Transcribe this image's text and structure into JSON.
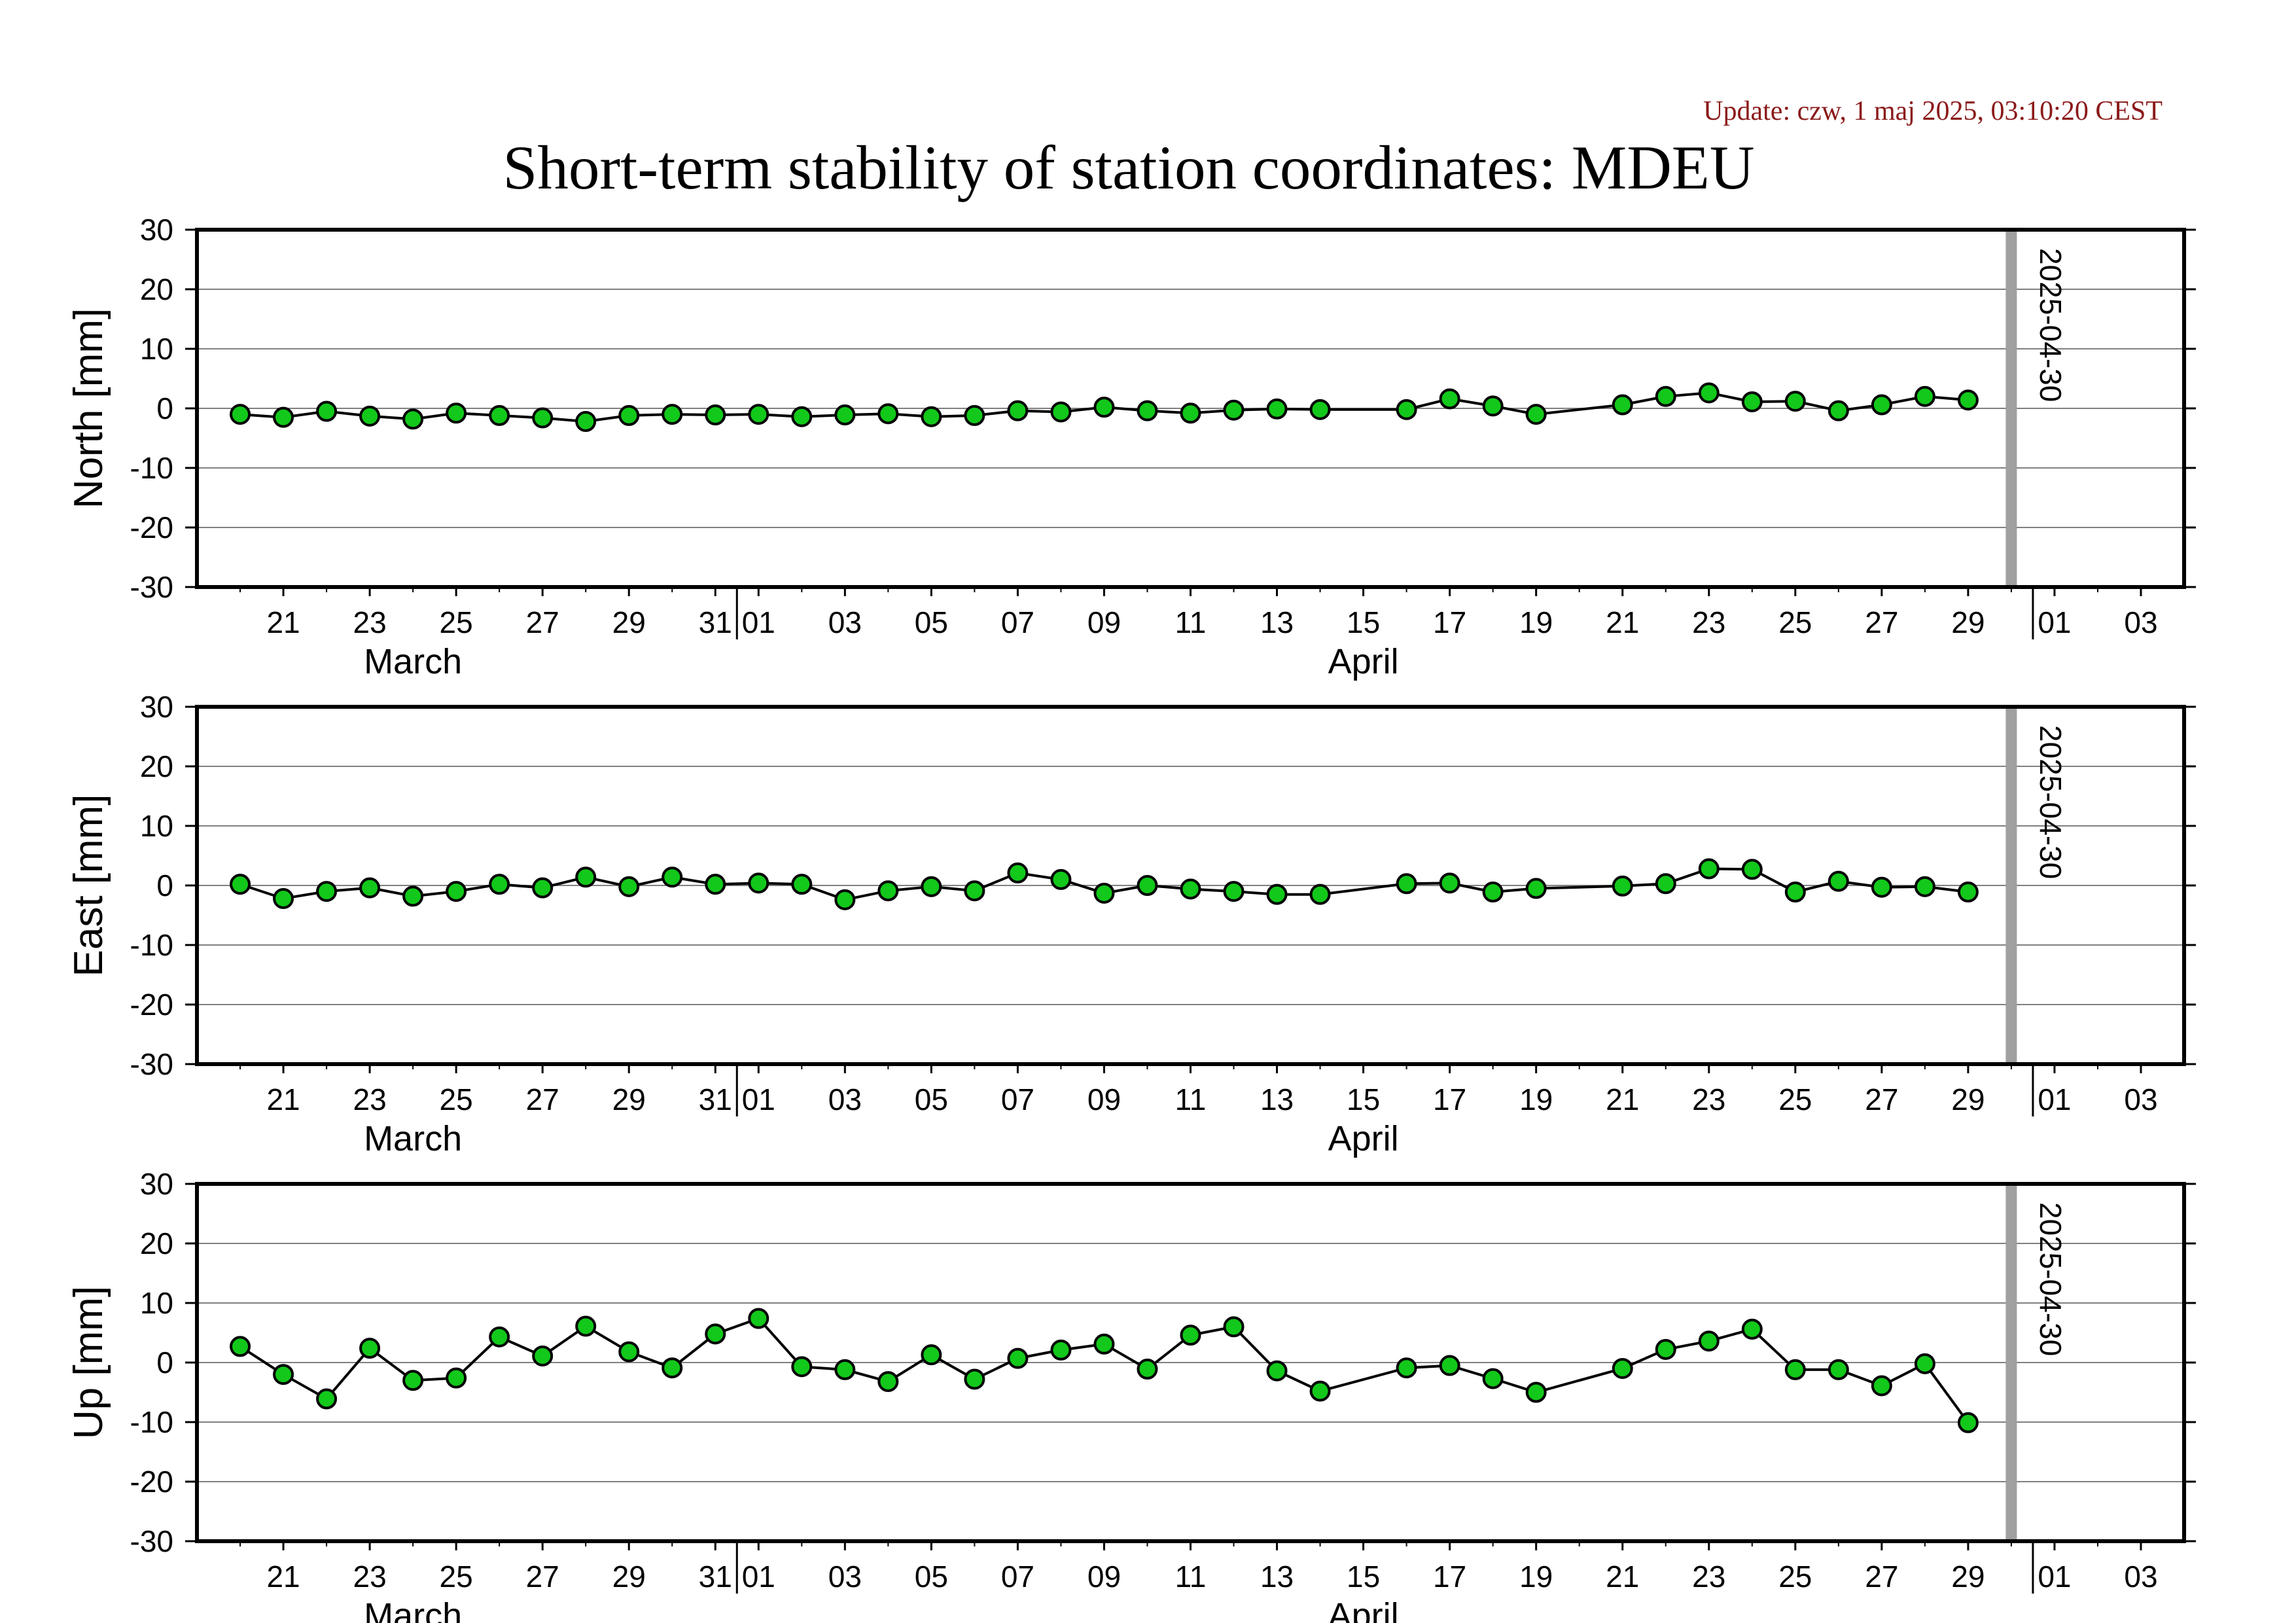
{
  "update_text": "Update: czw, 1 maj 2025, 03:10:20 CEST",
  "colors": {
    "update_text": "#8b1a1a",
    "point_fill": "#12c81a",
    "marker_line": "#a0a0a0",
    "grid": "#808080",
    "frame": "#000000"
  },
  "chart_data": [
    {
      "type": "line",
      "title": "Short-term stability of station coordinates: MDEU",
      "ylabel": "North [mm]",
      "ylim": [
        -30,
        30
      ],
      "yticks": [
        -30,
        -20,
        -10,
        0,
        10,
        20,
        30
      ],
      "xlim": [
        "2025-03-19",
        "2025-05-04"
      ],
      "grid": "horizontal",
      "x": [
        "2025-03-20",
        "2025-03-21",
        "2025-03-22",
        "2025-03-23",
        "2025-03-24",
        "2025-03-25",
        "2025-03-26",
        "2025-03-27",
        "2025-03-28",
        "2025-03-29",
        "2025-03-30",
        "2025-03-31",
        "2025-04-01",
        "2025-04-02",
        "2025-04-03",
        "2025-04-04",
        "2025-04-05",
        "2025-04-06",
        "2025-04-07",
        "2025-04-08",
        "2025-04-09",
        "2025-04-10",
        "2025-04-11",
        "2025-04-12",
        "2025-04-13",
        "2025-04-14",
        "2025-04-16",
        "2025-04-17",
        "2025-04-18",
        "2025-04-19",
        "2025-04-21",
        "2025-04-22",
        "2025-04-23",
        "2025-04-24",
        "2025-04-25",
        "2025-04-26",
        "2025-04-27",
        "2025-04-28",
        "2025-04-29"
      ],
      "values": [
        -1.0,
        -1.5,
        -0.5,
        -1.3,
        -1.8,
        -0.8,
        -1.2,
        -1.6,
        -2.2,
        -1.2,
        -1.0,
        -1.1,
        -1.0,
        -1.4,
        -1.1,
        -0.9,
        -1.4,
        -1.2,
        -0.4,
        -0.6,
        0.2,
        -0.4,
        -0.8,
        -0.3,
        -0.1,
        -0.2,
        -0.2,
        1.6,
        0.4,
        -1.0,
        0.6,
        2.0,
        2.6,
        1.1,
        1.2,
        -0.4,
        0.6,
        2.0,
        1.4
      ],
      "reference_date": "2025-04-30",
      "reference_label": "2025-04-30"
    },
    {
      "type": "line",
      "ylabel": "East [mm]",
      "ylim": [
        -30,
        30
      ],
      "yticks": [
        -30,
        -20,
        -10,
        0,
        10,
        20,
        30
      ],
      "xlim": [
        "2025-03-19",
        "2025-05-04"
      ],
      "grid": "horizontal",
      "x": [
        "2025-03-20",
        "2025-03-21",
        "2025-03-22",
        "2025-03-23",
        "2025-03-24",
        "2025-03-25",
        "2025-03-26",
        "2025-03-27",
        "2025-03-28",
        "2025-03-29",
        "2025-03-30",
        "2025-03-31",
        "2025-04-01",
        "2025-04-02",
        "2025-04-03",
        "2025-04-04",
        "2025-04-05",
        "2025-04-06",
        "2025-04-07",
        "2025-04-08",
        "2025-04-09",
        "2025-04-10",
        "2025-04-11",
        "2025-04-12",
        "2025-04-13",
        "2025-04-14",
        "2025-04-16",
        "2025-04-17",
        "2025-04-18",
        "2025-04-19",
        "2025-04-21",
        "2025-04-22",
        "2025-04-23",
        "2025-04-24",
        "2025-04-25",
        "2025-04-26",
        "2025-04-27",
        "2025-04-28",
        "2025-04-29"
      ],
      "values": [
        0.2,
        -2.2,
        -1.0,
        -0.4,
        -1.8,
        -1.0,
        0.2,
        -0.4,
        1.4,
        -0.2,
        1.4,
        0.2,
        0.4,
        0.2,
        -2.4,
        -0.9,
        -0.2,
        -0.9,
        2.1,
        1.0,
        -1.3,
        0.0,
        -0.6,
        -1.0,
        -1.5,
        -1.5,
        0.3,
        0.4,
        -1.1,
        -0.5,
        -0.1,
        0.3,
        2.8,
        2.7,
        -1.1,
        0.7,
        -0.3,
        -0.2,
        -1.1
      ],
      "reference_date": "2025-04-30",
      "reference_label": "2025-04-30"
    },
    {
      "type": "line",
      "ylabel": "Up [mm]",
      "ylim": [
        -30,
        30
      ],
      "yticks": [
        -30,
        -20,
        -10,
        0,
        10,
        20,
        30
      ],
      "xlim": [
        "2025-03-19",
        "2025-05-04"
      ],
      "grid": "horizontal",
      "x": [
        "2025-03-20",
        "2025-03-21",
        "2025-03-22",
        "2025-03-23",
        "2025-03-24",
        "2025-03-25",
        "2025-03-26",
        "2025-03-27",
        "2025-03-28",
        "2025-03-29",
        "2025-03-30",
        "2025-03-31",
        "2025-04-01",
        "2025-04-02",
        "2025-04-03",
        "2025-04-04",
        "2025-04-05",
        "2025-04-06",
        "2025-04-07",
        "2025-04-08",
        "2025-04-09",
        "2025-04-10",
        "2025-04-11",
        "2025-04-12",
        "2025-04-13",
        "2025-04-14",
        "2025-04-16",
        "2025-04-17",
        "2025-04-18",
        "2025-04-19",
        "2025-04-21",
        "2025-04-22",
        "2025-04-23",
        "2025-04-24",
        "2025-04-25",
        "2025-04-26",
        "2025-04-27",
        "2025-04-28",
        "2025-04-29"
      ],
      "values": [
        2.7,
        -2.0,
        -6.1,
        2.4,
        -3.0,
        -2.6,
        4.3,
        1.1,
        6.1,
        1.8,
        -0.9,
        4.8,
        7.4,
        -0.7,
        -1.2,
        -3.2,
        1.3,
        -2.8,
        0.7,
        2.1,
        3.1,
        -1.1,
        4.6,
        6.0,
        -1.4,
        -4.8,
        -0.9,
        -0.5,
        -2.7,
        -5.0,
        -1.0,
        2.2,
        3.6,
        5.6,
        -1.2,
        -1.2,
        -3.9,
        -0.2,
        -10.1
      ],
      "reference_date": "2025-04-30",
      "reference_label": "2025-04-30"
    }
  ],
  "x_axis": {
    "tick_labels": [
      {
        "date": "2025-03-21",
        "label": "21"
      },
      {
        "date": "2025-03-23",
        "label": "23"
      },
      {
        "date": "2025-03-25",
        "label": "25"
      },
      {
        "date": "2025-03-27",
        "label": "27"
      },
      {
        "date": "2025-03-29",
        "label": "29"
      },
      {
        "date": "2025-03-31",
        "label": "31"
      },
      {
        "date": "2025-04-01",
        "label": "01"
      },
      {
        "date": "2025-04-03",
        "label": "03"
      },
      {
        "date": "2025-04-05",
        "label": "05"
      },
      {
        "date": "2025-04-07",
        "label": "07"
      },
      {
        "date": "2025-04-09",
        "label": "09"
      },
      {
        "date": "2025-04-11",
        "label": "11"
      },
      {
        "date": "2025-04-13",
        "label": "13"
      },
      {
        "date": "2025-04-15",
        "label": "15"
      },
      {
        "date": "2025-04-17",
        "label": "17"
      },
      {
        "date": "2025-04-19",
        "label": "19"
      },
      {
        "date": "2025-04-21",
        "label": "21"
      },
      {
        "date": "2025-04-23",
        "label": "23"
      },
      {
        "date": "2025-04-25",
        "label": "25"
      },
      {
        "date": "2025-04-27",
        "label": "27"
      },
      {
        "date": "2025-04-29",
        "label": "29"
      },
      {
        "date": "2025-05-01",
        "label": "01"
      },
      {
        "date": "2025-05-03",
        "label": "03"
      }
    ],
    "month_boundaries": [
      "2025-04-01",
      "2025-05-01"
    ],
    "month_labels": [
      {
        "date": "2025-03-24",
        "label": "March"
      },
      {
        "date": "2025-04-15",
        "label": "April"
      }
    ]
  }
}
